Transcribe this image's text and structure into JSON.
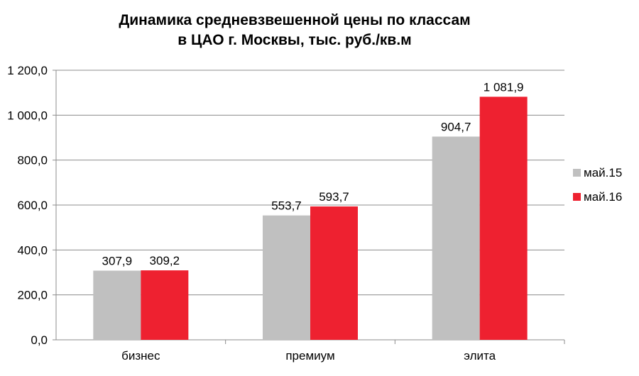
{
  "chart_data": {
    "type": "bar",
    "title_line1": "Динамика средневзвешенной цены по классам",
    "title_line2": "в ЦАО г. Москвы, тыс. руб./кв.м",
    "categories": [
      "бизнес",
      "премиум",
      "элита"
    ],
    "series": [
      {
        "name": "май.15",
        "color": "#c0c0c0",
        "values": [
          307.9,
          553.7,
          904.7
        ],
        "value_labels": [
          "307,9",
          "553,7",
          "904,7"
        ]
      },
      {
        "name": "май.16",
        "color": "#ee2130",
        "values": [
          309.2,
          593.7,
          1081.9
        ],
        "value_labels": [
          "309,2",
          "593,7",
          "1 081,9"
        ]
      }
    ],
    "ylim": [
      0,
      1200
    ],
    "yticks": [
      0,
      200,
      400,
      600,
      800,
      1000,
      1200
    ],
    "ytick_labels": [
      "0,0",
      "200,0",
      "400,0",
      "600,0",
      "800,0",
      "1 000,0",
      "1 200,0"
    ],
    "grid": true,
    "legend_position": "right"
  }
}
